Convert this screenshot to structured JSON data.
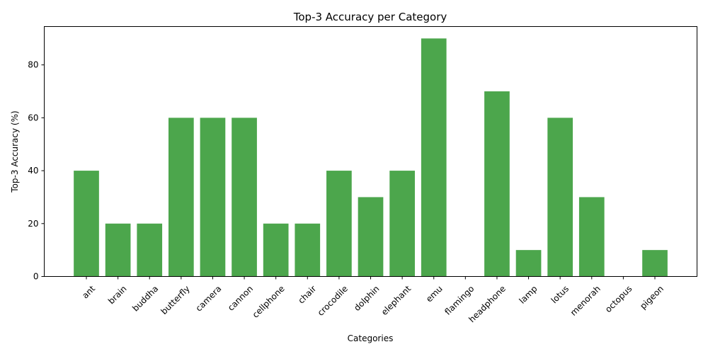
{
  "chart_data": {
    "type": "bar",
    "title": "Top-3 Accuracy per Category",
    "xlabel": "Categories",
    "ylabel": "Top-3 Accuracy (%)",
    "categories": [
      "ant",
      "brain",
      "buddha",
      "butterfly",
      "camera",
      "cannon",
      "cellphone",
      "chair",
      "crocodile",
      "dolphin",
      "elephant",
      "emu",
      "flamingo",
      "headphone",
      "lamp",
      "lotus",
      "menorah",
      "octopus",
      "pigeon"
    ],
    "values": [
      40,
      20,
      20,
      60,
      60,
      60,
      20,
      20,
      40,
      30,
      40,
      90,
      0,
      70,
      10,
      60,
      30,
      0,
      10
    ],
    "ylim": [
      0,
      94.5
    ],
    "yticks": [
      0,
      20,
      40,
      60,
      80
    ],
    "bar_color": "#4ca64c",
    "grid": false,
    "legend": "none"
  }
}
